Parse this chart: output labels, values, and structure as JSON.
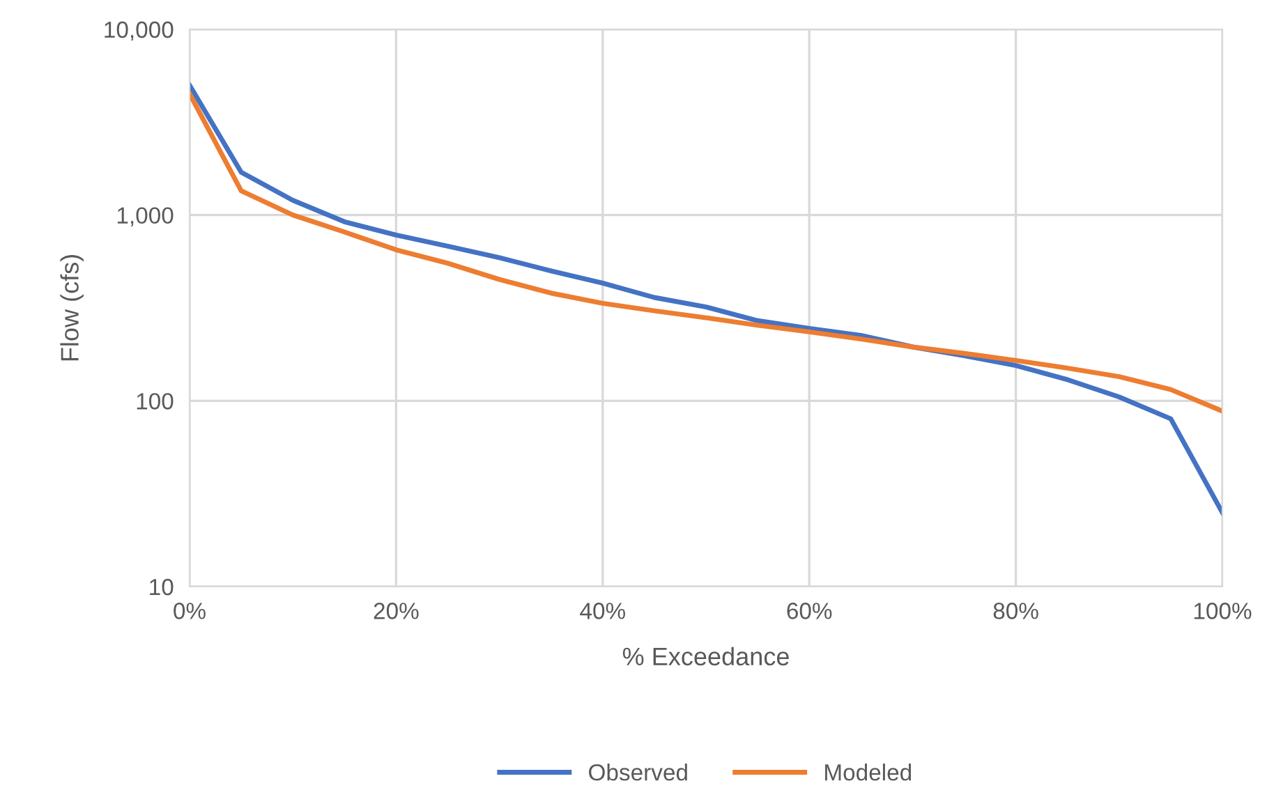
{
  "chart_data": {
    "type": "line",
    "xlabel": "% Exceedance",
    "ylabel": "Flow (cfs)",
    "x": [
      0,
      5,
      10,
      15,
      20,
      25,
      30,
      35,
      40,
      45,
      50,
      55,
      60,
      65,
      70,
      75,
      80,
      85,
      90,
      95,
      100
    ],
    "series": [
      {
        "name": "Observed",
        "color": "#4472c4",
        "values": [
          5000,
          1700,
          1200,
          920,
          780,
          680,
          590,
          500,
          430,
          360,
          320,
          270,
          245,
          225,
          195,
          175,
          155,
          130,
          105,
          80,
          25
        ]
      },
      {
        "name": "Modeled",
        "color": "#ed7d31",
        "values": [
          4500,
          1350,
          1000,
          810,
          650,
          550,
          450,
          380,
          335,
          305,
          280,
          255,
          235,
          215,
          195,
          180,
          165,
          150,
          135,
          115,
          88
        ]
      }
    ],
    "log": "y",
    "xlim": [
      0,
      100
    ],
    "ylim": [
      10,
      10000
    ],
    "xticks": [
      {
        "value": 0,
        "label": "0%"
      },
      {
        "value": 20,
        "label": "20%"
      },
      {
        "value": 40,
        "label": "40%"
      },
      {
        "value": 60,
        "label": "60%"
      },
      {
        "value": 80,
        "label": "80%"
      },
      {
        "value": 100,
        "label": "100%"
      }
    ],
    "yticks": [
      10,
      100,
      {
        "value": 1000,
        "label": "1,000"
      },
      {
        "value": 10000,
        "label": "10,000"
      }
    ],
    "grid": true,
    "legend": "bottom",
    "marker": "none",
    "line_style": "solid"
  }
}
